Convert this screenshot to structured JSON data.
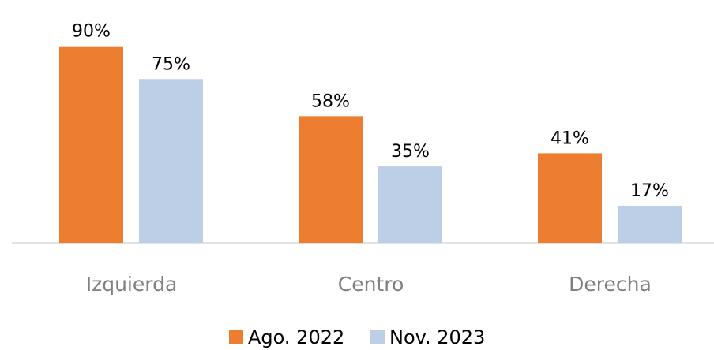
{
  "chart_data": {
    "type": "bar",
    "categories": [
      "Izquierda",
      "Centro",
      "Derecha"
    ],
    "series": [
      {
        "name": "Ago. 2022",
        "color": "#ed7d31",
        "values": [
          90,
          58,
          41
        ],
        "value_labels": [
          "90%",
          "58%",
          "41%"
        ]
      },
      {
        "name": "Nov. 2023",
        "color": "#bdcfe6",
        "values": [
          75,
          35,
          17
        ],
        "value_labels": [
          "75%",
          "35%",
          "17%"
        ]
      }
    ],
    "ylim": [
      0,
      100
    ]
  }
}
